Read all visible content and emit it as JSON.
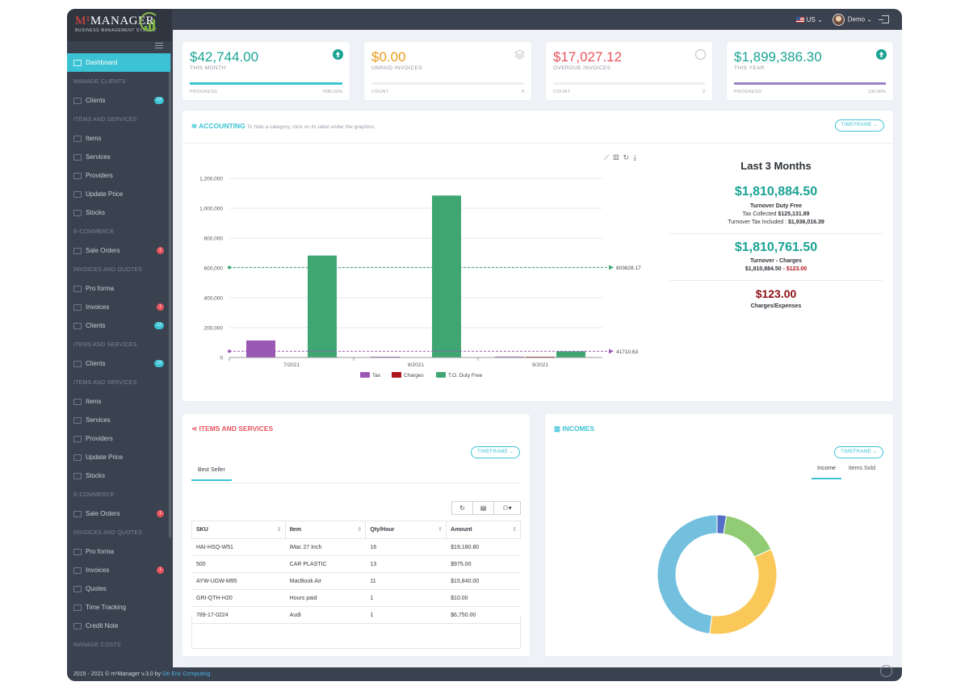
{
  "brand": {
    "logo_main": "M",
    "logo_accent": "¹",
    "logo_rest": "MANAGER",
    "logo_tag": "BUSINESS MANAGEMENT SYSTEM"
  },
  "topbar": {
    "lang": "US",
    "user": "Demo"
  },
  "sidebar": {
    "items": [
      {
        "type": "item",
        "label": "Dashboard",
        "active": true
      },
      {
        "type": "head",
        "label": "MANAGE CLIENTS"
      },
      {
        "type": "item",
        "label": "Clients",
        "badge": "13",
        "badge_color": "cyan"
      },
      {
        "type": "head",
        "label": "ITEMS AND SERVICES"
      },
      {
        "type": "item",
        "label": "Items"
      },
      {
        "type": "item",
        "label": "Services"
      },
      {
        "type": "item",
        "label": "Providers"
      },
      {
        "type": "item",
        "label": "Update Price"
      },
      {
        "type": "item",
        "label": "Stocks"
      },
      {
        "type": "head",
        "label": "E-COMMERCE"
      },
      {
        "type": "item",
        "label": "Sale Orders",
        "badge": "1",
        "badge_color": "red"
      },
      {
        "type": "head",
        "label": "INVOICES AND QUOTES"
      },
      {
        "type": "item",
        "label": "Pro forma"
      },
      {
        "type": "item",
        "label": "Invoices",
        "badge": "1",
        "badge_color": "red"
      },
      {
        "type": "item",
        "label": "Clients",
        "badge": "13",
        "badge_color": "cyan"
      },
      {
        "type": "head",
        "label": "ITEMS AND SERVICES"
      },
      {
        "type": "item",
        "label": "Clients",
        "badge": "13",
        "badge_color": "cyan"
      },
      {
        "type": "head",
        "label": "ITEMS AND SERVICES"
      },
      {
        "type": "item",
        "label": "Items"
      },
      {
        "type": "item",
        "label": "Services"
      },
      {
        "type": "item",
        "label": "Providers"
      },
      {
        "type": "item",
        "label": "Update Price"
      },
      {
        "type": "item",
        "label": "Stocks"
      },
      {
        "type": "head",
        "label": "E-COMMERCE"
      },
      {
        "type": "item",
        "label": "Sale Orders",
        "badge": "1",
        "badge_color": "red"
      },
      {
        "type": "head",
        "label": "INVOICES AND QUOTES"
      },
      {
        "type": "item",
        "label": "Pro forma"
      },
      {
        "type": "item",
        "label": "Invoices",
        "badge": "1",
        "badge_color": "red"
      },
      {
        "type": "item",
        "label": "Quotes"
      },
      {
        "type": "item",
        "label": "Time Tracking"
      },
      {
        "type": "item",
        "label": "Credit Note"
      },
      {
        "type": "head",
        "label": "MANAGE COSTS"
      }
    ]
  },
  "stats": [
    {
      "value": "$42,744.00",
      "label": "THIS MONTH",
      "foot_left": "PROGRESS",
      "foot_right": "7080.52%",
      "color": "#1aa394",
      "bar_color": "#3bc3d5",
      "progress": 1.0,
      "icon": "arrow-up-circle-icon"
    },
    {
      "value": "$0.00",
      "label": "UNPAID INVOICES",
      "foot_left": "COUNT",
      "foot_right": "0",
      "color": "#e89c1a",
      "bar_color": "#eceff3",
      "progress": 0,
      "icon": "layers-icon"
    },
    {
      "value": "$17,027.12",
      "label": "OVERDUE INVOICES",
      "foot_left": "COUNT",
      "foot_right": "2",
      "color": "#e7545d",
      "bar_color": "#eceff3",
      "progress": 0,
      "icon": "gauge-icon"
    },
    {
      "value": "$1,899,386.30",
      "label": "THIS YEAR",
      "foot_left": "PROGRESS",
      "foot_right": "130.00%",
      "color": "#1aa394",
      "bar_color": "#9b84c6",
      "progress": 1.0,
      "icon": "arrow-up-circle-icon"
    }
  ],
  "accounting": {
    "title": "ACCOUNTING",
    "subtitle": "To hide a category, click on its label under the graphics.",
    "timeframe": "TIMEFRAME",
    "summary": {
      "heading": "Last 3 Months",
      "turnover": "$1,810,884.50",
      "turnover_label": "Turnover Duty Free",
      "tax_line_label": "Tax Collected",
      "tax_line_value": "$125,131.89",
      "incl_line_label": "Turnover Tax Included :",
      "incl_line_value": "$1,936,016.39",
      "net": "$1,810,761.50",
      "net_label": "Turnover - Charges",
      "net_a": "$1,810,884.50",
      "net_b": "- $123.00",
      "charges": "$123.00",
      "charges_label": "Charges/Expenses"
    }
  },
  "chart_data": {
    "type": "bar",
    "categories": [
      "7/2021",
      "8/2021",
      "9/2021"
    ],
    "series": [
      {
        "name": "Tax",
        "color": "#9b59b6",
        "values": [
          114000,
          4500,
          6000
        ]
      },
      {
        "name": "Charges",
        "color": "#b0141c",
        "values": [
          0,
          0,
          123
        ]
      },
      {
        "name": "T.O. Duty Free",
        "color": "#3fa673",
        "values": [
          683000,
          1085000,
          42000
        ]
      }
    ],
    "ylim": [
      0,
      1200000
    ],
    "yticks": [
      "0",
      "200,000",
      "400,000",
      "600,000",
      "800,000",
      "1,000,000",
      "1,200,000"
    ],
    "markLines": [
      {
        "value": 603628.17,
        "label": "603628.17",
        "color": "#3fa673"
      },
      {
        "value": 41710.63,
        "label": "41710.63",
        "color": "#9b59b6"
      }
    ],
    "legend": "bottom"
  },
  "items_services": {
    "title": "ITEMS AND SERVICES",
    "timeframe": "TIMEFRAME",
    "tab": "Best Seller",
    "columns": [
      "SKU",
      "Item",
      "Qty/Hour",
      "Amount"
    ],
    "rows": [
      [
        "HAI-HSQ-W51",
        "iMac 27 Inch",
        "16",
        "$19,180.80"
      ],
      [
        "500",
        "CAR PLASTIC",
        "13",
        "$975.00"
      ],
      [
        "AYW-UGW-M95",
        "MacBook Air",
        "11",
        "$15,840.00"
      ],
      [
        "GRI-QTH-H20",
        "Hours paid",
        "1",
        "$10.00"
      ],
      [
        "789-17-0224",
        "Audi",
        "1",
        "$6,750.00"
      ]
    ]
  },
  "incomes": {
    "title": "INCOMES",
    "timeframe": "TIMEFRAME",
    "tabs": [
      "Income",
      "Items Sold"
    ],
    "donut": [
      {
        "name": "slice-1",
        "value": 2.5,
        "color": "#5470c6"
      },
      {
        "name": "slice-2",
        "value": 15.5,
        "color": "#91cc75"
      },
      {
        "name": "slice-3",
        "value": 34,
        "color": "#fac858"
      },
      {
        "name": "slice-4",
        "value": 48,
        "color": "#73c0de"
      }
    ]
  },
  "footer": {
    "text": "2015 - 2021 © m¹Manager v.3.0 by ",
    "link": "Ori Eric Computing"
  }
}
